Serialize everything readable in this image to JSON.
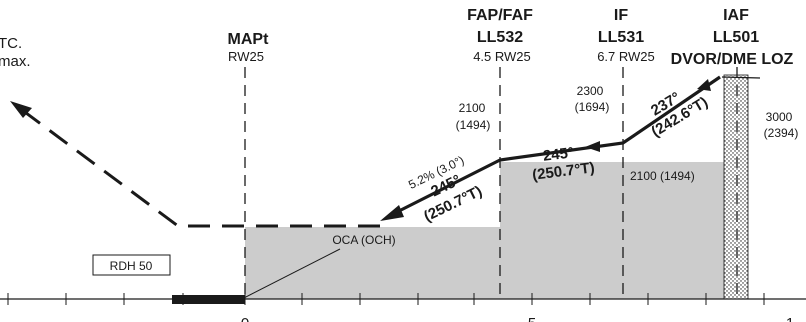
{
  "top_left_text": {
    "line1": "TC.",
    "line2": "max."
  },
  "fixes": {
    "mapt": {
      "name": "MAPt",
      "sub": "RW25"
    },
    "faf": {
      "name1": "FAP/FAF",
      "name2": "LL532",
      "sub": "4.5 RW25"
    },
    "if": {
      "name1": "IF",
      "name2": "LL531",
      "sub": "6.7 RW25"
    },
    "iaf": {
      "name1": "IAF",
      "name2": "LL501",
      "name3": "DVOR/DME LOZ"
    }
  },
  "altitudes": {
    "faf": {
      "alt": "2100",
      "height": "(1494)"
    },
    "if": {
      "alt": "2300",
      "height": "(1694)"
    },
    "iaf": {
      "alt": "3000",
      "height": "(2394)"
    },
    "plateau": "2100 (1494)"
  },
  "tracks": {
    "iaf_if": {
      "mag": "237°",
      "true": "(242.6°T)"
    },
    "if_faf": {
      "mag": "245°",
      "true": "(250.7°T)"
    },
    "final": {
      "mag": "245°",
      "true": "(250.7°T)",
      "gradient": "5.2% (3.0°)"
    }
  },
  "labels": {
    "oca": "OCA (OCH)",
    "rdh": "RDH 50"
  },
  "axis": {
    "tick_0": "0",
    "tick_5": "5",
    "tick_10": "1"
  },
  "colors": {
    "ink": "#1a1a1a",
    "protection_area": "#cccccc"
  }
}
